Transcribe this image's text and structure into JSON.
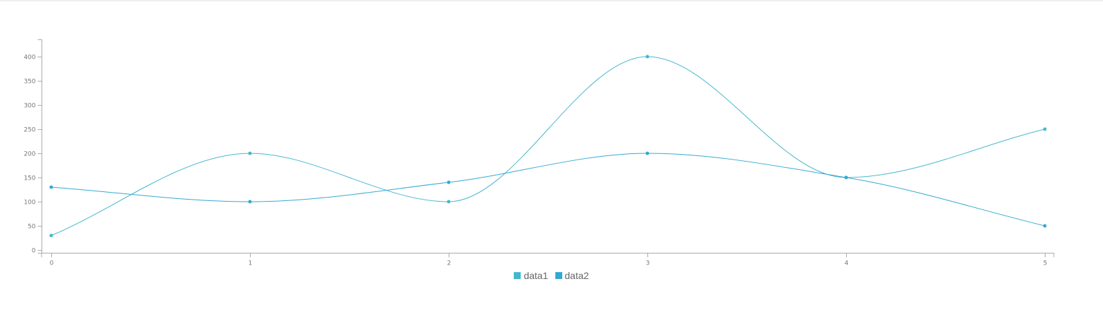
{
  "chart_data": {
    "type": "line",
    "x": [
      0,
      1,
      2,
      3,
      4,
      5
    ],
    "xlim": [
      0,
      5
    ],
    "ylim": [
      0,
      440
    ],
    "y_ticks": [
      0,
      50,
      100,
      150,
      200,
      250,
      300,
      350,
      400
    ],
    "grid": false,
    "legend_position": "bottom",
    "series": [
      {
        "name": "data1",
        "values": [
          30,
          200,
          100,
          400,
          150,
          250
        ],
        "color": "#45b7cd"
      },
      {
        "name": "data2",
        "values": [
          130,
          100,
          140,
          200,
          150,
          50
        ],
        "color": "#32a9d1"
      }
    ]
  }
}
